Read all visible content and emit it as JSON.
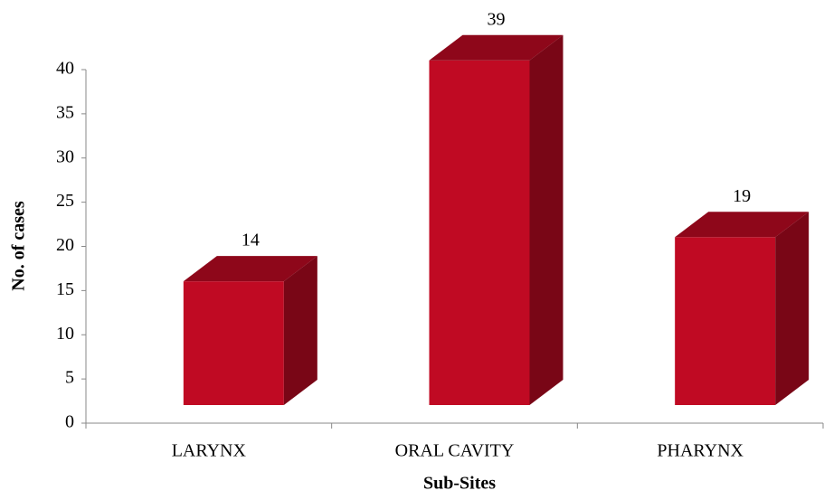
{
  "chart_data": {
    "type": "bar3d",
    "x_label": "Sub-Sites",
    "y_label": "No. of cases",
    "categories": [
      "LARYNX",
      "ORAL CAVITY",
      "PHARYNX"
    ],
    "values": [
      14,
      39,
      19
    ],
    "color": "#c00a23",
    "ylim": [
      0,
      40
    ],
    "yticks": [
      0,
      5,
      10,
      15,
      20,
      25,
      30,
      35,
      40
    ],
    "grid": false
  }
}
